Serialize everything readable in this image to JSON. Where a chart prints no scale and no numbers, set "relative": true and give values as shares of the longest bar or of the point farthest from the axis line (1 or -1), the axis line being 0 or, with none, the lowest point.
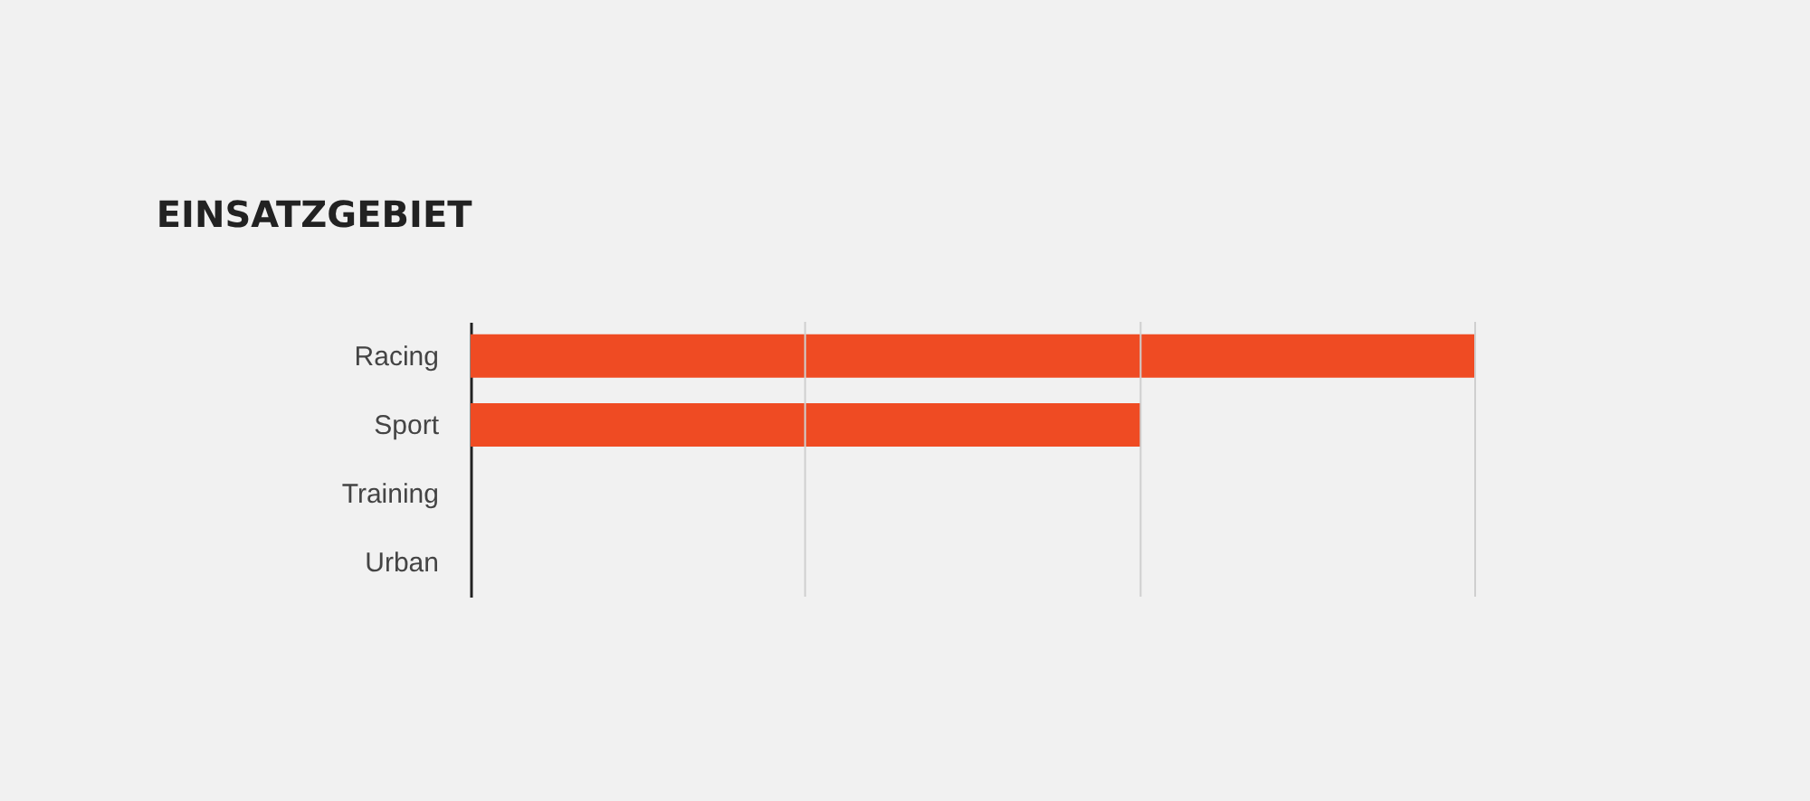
{
  "chart_data": {
    "type": "bar",
    "orientation": "horizontal",
    "relative": true,
    "title": "EINSATZGEBIET",
    "categories": [
      "Racing",
      "Sport",
      "Training",
      "Urban"
    ],
    "values": [
      1,
      0.667,
      0,
      0
    ],
    "color": "#ef4b23",
    "ref_lines": [
      {
        "axis": "x",
        "value": 0.333,
        "color": "#cfcfcf"
      },
      {
        "axis": "x",
        "value": 0.667,
        "color": "#cfcfcf"
      },
      {
        "axis": "x",
        "value": 1,
        "color": "#cfcfcf"
      }
    ]
  }
}
